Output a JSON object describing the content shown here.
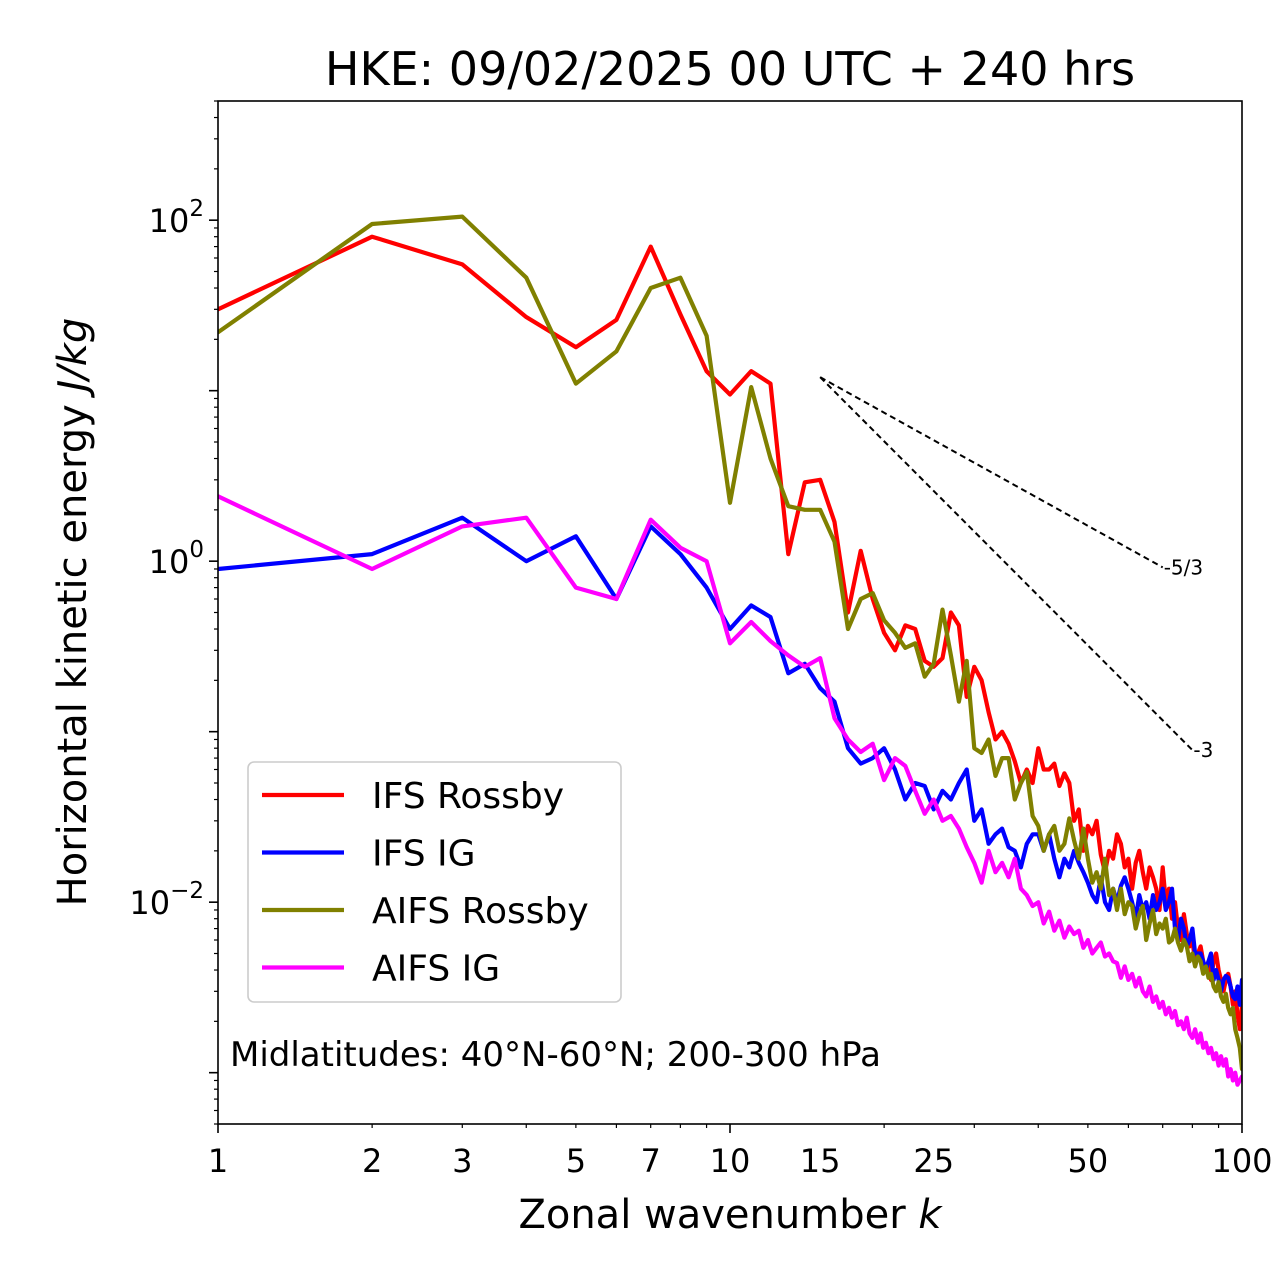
{
  "chart_data": {
    "type": "line",
    "title": "HKE: 09/02/2025 00 UTC + 240 hrs",
    "xlabel": "Zonal wavenumber k",
    "ylabel": "Horizontal kinetic energy J/kg",
    "xscale": "log",
    "yscale": "log",
    "xlim": [
      1,
      100
    ],
    "ylim": [
      0.0005,
      500
    ],
    "xticks": [
      1,
      2,
      3,
      5,
      7,
      10,
      15,
      25,
      50,
      100
    ],
    "xtick_labels": [
      "1",
      "2",
      "3",
      "5",
      "7",
      "10",
      "15",
      "25",
      "50",
      "100"
    ],
    "yticks": [
      0.01,
      1,
      100
    ],
    "ytick_labels": [
      {
        "base": "10",
        "exp": "−2"
      },
      {
        "base": "10",
        "exp": "0"
      },
      {
        "base": "10",
        "exp": "2"
      }
    ],
    "legend_position": "lower-left",
    "annotation": "Midlatitudes: 40°N-60°N; 200-300 hPa",
    "reference_slopes": [
      {
        "label": "-5/3",
        "x": [
          15,
          70
        ],
        "y": [
          12,
          0.92
        ]
      },
      {
        "label": "-3",
        "x": [
          15,
          80
        ],
        "y": [
          12,
          0.078
        ]
      }
    ],
    "series": [
      {
        "name": "IFS Rossby",
        "color": "#ff0000",
        "x": [
          1,
          2,
          3,
          4,
          5,
          6,
          7,
          8,
          9,
          10,
          11,
          12,
          13,
          14,
          15,
          16,
          17,
          18,
          19,
          20,
          21,
          22,
          23,
          24,
          25,
          26,
          27,
          28,
          29,
          30,
          31,
          32,
          33,
          34,
          35,
          36,
          37,
          38,
          39,
          40,
          41,
          42,
          43,
          44,
          45,
          46,
          47,
          48,
          49,
          50,
          51,
          52,
          53,
          54,
          55,
          56,
          57,
          58,
          59,
          60,
          61,
          62,
          63,
          64,
          65,
          66,
          67,
          68,
          69,
          70,
          71,
          72,
          73,
          74,
          75,
          76,
          77,
          78,
          79,
          80,
          81,
          82,
          83,
          84,
          85,
          86,
          87,
          88,
          89,
          90,
          91,
          92,
          93,
          94,
          95,
          96,
          97,
          98,
          99,
          100
        ],
        "y": [
          30,
          80,
          55,
          27,
          18,
          26,
          70,
          28,
          13,
          9.5,
          13,
          11,
          1.1,
          2.9,
          3.0,
          1.7,
          0.5,
          1.15,
          0.6,
          0.38,
          0.3,
          0.42,
          0.4,
          0.26,
          0.24,
          0.27,
          0.5,
          0.42,
          0.16,
          0.24,
          0.2,
          0.13,
          0.09,
          0.1,
          0.085,
          0.067,
          0.05,
          0.06,
          0.05,
          0.08,
          0.06,
          0.06,
          0.065,
          0.048,
          0.057,
          0.05,
          0.03,
          0.035,
          0.02,
          0.028,
          0.025,
          0.03,
          0.019,
          0.015,
          0.02,
          0.018,
          0.025,
          0.022,
          0.016,
          0.018,
          0.012,
          0.017,
          0.02,
          0.015,
          0.012,
          0.016,
          0.014,
          0.012,
          0.009,
          0.016,
          0.01,
          0.012,
          0.008,
          0.01,
          0.007,
          0.006,
          0.0085,
          0.0065,
          0.0055,
          0.006,
          0.0045,
          0.005,
          0.0055,
          0.0045,
          0.004,
          0.0045,
          0.0035,
          0.0045,
          0.005,
          0.004,
          0.0035,
          0.003,
          0.0035,
          0.0038,
          0.0032,
          0.0025,
          0.003,
          0.0022,
          0.0018,
          0.0025
        ]
      },
      {
        "name": "IFS IG",
        "color": "#0000ff",
        "x": [
          1,
          2,
          3,
          4,
          5,
          6,
          7,
          8,
          9,
          10,
          11,
          12,
          13,
          14,
          15,
          16,
          17,
          18,
          19,
          20,
          21,
          22,
          23,
          24,
          25,
          26,
          27,
          28,
          29,
          30,
          31,
          32,
          33,
          34,
          35,
          36,
          37,
          38,
          39,
          40,
          41,
          42,
          43,
          44,
          45,
          46,
          47,
          48,
          49,
          50,
          51,
          52,
          53,
          54,
          55,
          56,
          57,
          58,
          59,
          60,
          61,
          62,
          63,
          64,
          65,
          66,
          67,
          68,
          69,
          70,
          71,
          72,
          73,
          74,
          75,
          76,
          77,
          78,
          79,
          80,
          81,
          82,
          83,
          84,
          85,
          86,
          87,
          88,
          89,
          90,
          91,
          92,
          93,
          94,
          95,
          96,
          97,
          98,
          99,
          100
        ],
        "y": [
          0.9,
          1.1,
          1.8,
          1.0,
          1.4,
          0.6,
          1.6,
          1.1,
          0.7,
          0.4,
          0.55,
          0.47,
          0.22,
          0.25,
          0.18,
          0.15,
          0.08,
          0.065,
          0.07,
          0.08,
          0.06,
          0.04,
          0.05,
          0.048,
          0.035,
          0.045,
          0.04,
          0.05,
          0.06,
          0.03,
          0.035,
          0.022,
          0.025,
          0.027,
          0.021,
          0.02,
          0.016,
          0.022,
          0.025,
          0.025,
          0.02,
          0.025,
          0.018,
          0.014,
          0.018,
          0.016,
          0.02,
          0.017,
          0.015,
          0.013,
          0.011,
          0.01,
          0.014,
          0.01,
          0.009,
          0.012,
          0.01,
          0.0125,
          0.014,
          0.012,
          0.01,
          0.008,
          0.011,
          0.009,
          0.01,
          0.008,
          0.011,
          0.009,
          0.01,
          0.012,
          0.009,
          0.01,
          0.012,
          0.007,
          0.006,
          0.008,
          0.007,
          0.0055,
          0.006,
          0.007,
          0.005,
          0.005,
          0.005,
          0.0045,
          0.004,
          0.0045,
          0.005,
          0.0035,
          0.004,
          0.0035,
          0.003,
          0.0035,
          0.0037,
          0.0036,
          0.0032,
          0.0028,
          0.0027,
          0.0032,
          0.0025,
          0.0035
        ]
      },
      {
        "name": "AIFS Rossby",
        "color": "#808000",
        "x": [
          1,
          2,
          3,
          4,
          5,
          6,
          7,
          8,
          9,
          10,
          11,
          12,
          13,
          14,
          15,
          16,
          17,
          18,
          19,
          20,
          21,
          22,
          23,
          24,
          25,
          26,
          27,
          28,
          29,
          30,
          31,
          32,
          33,
          34,
          35,
          36,
          37,
          38,
          39,
          40,
          41,
          42,
          43,
          44,
          45,
          46,
          47,
          48,
          49,
          50,
          51,
          52,
          53,
          54,
          55,
          56,
          57,
          58,
          59,
          60,
          61,
          62,
          63,
          64,
          65,
          66,
          67,
          68,
          69,
          70,
          71,
          72,
          73,
          74,
          75,
          76,
          77,
          78,
          79,
          80,
          81,
          82,
          83,
          84,
          85,
          86,
          87,
          88,
          89,
          90,
          91,
          92,
          93,
          94,
          95,
          96,
          97,
          98,
          99,
          100
        ],
        "y": [
          22,
          95,
          105,
          46,
          11,
          17,
          40,
          46,
          21,
          2.2,
          10.5,
          4,
          2.1,
          2.0,
          2.0,
          1.3,
          0.4,
          0.6,
          0.65,
          0.45,
          0.38,
          0.31,
          0.33,
          0.21,
          0.25,
          0.52,
          0.28,
          0.15,
          0.26,
          0.08,
          0.075,
          0.09,
          0.055,
          0.07,
          0.07,
          0.04,
          0.05,
          0.058,
          0.032,
          0.028,
          0.02,
          0.025,
          0.028,
          0.02,
          0.022,
          0.031,
          0.023,
          0.018,
          0.027,
          0.018,
          0.013,
          0.015,
          0.012,
          0.018,
          0.011,
          0.012,
          0.009,
          0.012,
          0.0085,
          0.01,
          0.0095,
          0.007,
          0.0085,
          0.0095,
          0.006,
          0.0075,
          0.009,
          0.0065,
          0.0075,
          0.007,
          0.008,
          0.0058,
          0.006,
          0.007,
          0.0058,
          0.0052,
          0.006,
          0.0055,
          0.0045,
          0.005,
          0.0042,
          0.0048,
          0.0045,
          0.0038,
          0.0042,
          0.0036,
          0.0038,
          0.0032,
          0.003,
          0.0034,
          0.0028,
          0.0026,
          0.0029,
          0.0024,
          0.0022,
          0.0024,
          0.0018,
          0.0016,
          0.0014,
          0.00105
        ]
      },
      {
        "name": "AIFS IG",
        "color": "#ff00ff",
        "x": [
          1,
          2,
          3,
          4,
          5,
          6,
          7,
          8,
          9,
          10,
          11,
          12,
          13,
          14,
          15,
          16,
          17,
          18,
          19,
          20,
          21,
          22,
          23,
          24,
          25,
          26,
          27,
          28,
          29,
          30,
          31,
          32,
          33,
          34,
          35,
          36,
          37,
          38,
          39,
          40,
          41,
          42,
          43,
          44,
          45,
          46,
          47,
          48,
          49,
          50,
          51,
          52,
          53,
          54,
          55,
          56,
          57,
          58,
          59,
          60,
          61,
          62,
          63,
          64,
          65,
          66,
          67,
          68,
          69,
          70,
          71,
          72,
          73,
          74,
          75,
          76,
          77,
          78,
          79,
          80,
          81,
          82,
          83,
          84,
          85,
          86,
          87,
          88,
          89,
          90,
          91,
          92,
          93,
          94,
          95,
          96,
          97,
          98,
          99,
          100
        ],
        "y": [
          2.4,
          0.9,
          1.6,
          1.8,
          0.7,
          0.6,
          1.75,
          1.2,
          1.0,
          0.33,
          0.44,
          0.34,
          0.28,
          0.24,
          0.27,
          0.12,
          0.09,
          0.076,
          0.085,
          0.052,
          0.07,
          0.063,
          0.045,
          0.033,
          0.04,
          0.03,
          0.032,
          0.027,
          0.021,
          0.017,
          0.013,
          0.02,
          0.015,
          0.017,
          0.014,
          0.018,
          0.012,
          0.011,
          0.0095,
          0.01,
          0.0075,
          0.0088,
          0.0068,
          0.0078,
          0.0062,
          0.0072,
          0.0065,
          0.0068,
          0.0054,
          0.006,
          0.005,
          0.0054,
          0.0058,
          0.0048,
          0.005,
          0.0045,
          0.0044,
          0.0036,
          0.0042,
          0.0035,
          0.0038,
          0.0032,
          0.0036,
          0.003,
          0.0028,
          0.0032,
          0.0026,
          0.0028,
          0.0024,
          0.0026,
          0.0022,
          0.0024,
          0.0021,
          0.0023,
          0.0019,
          0.002,
          0.0018,
          0.0021,
          0.0017,
          0.0016,
          0.0018,
          0.0015,
          0.0017,
          0.0014,
          0.0015,
          0.0013,
          0.0014,
          0.0012,
          0.0013,
          0.0011,
          0.00125,
          0.0011,
          0.0012,
          0.00095,
          0.00105,
          0.0009,
          0.001,
          0.00085,
          0.0009,
          0.00095
        ]
      }
    ]
  }
}
